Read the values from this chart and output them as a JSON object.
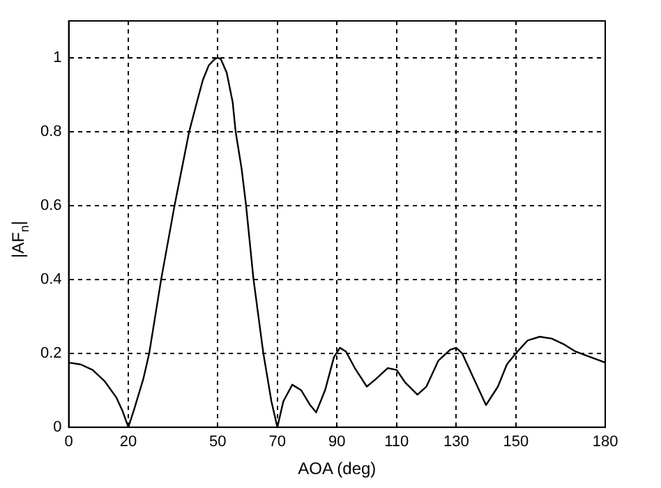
{
  "chart_data": {
    "type": "line",
    "xlabel": "AOA (deg)",
    "ylabel": "|AF$_{n}$|",
    "xlim": [
      0,
      180
    ],
    "ylim": [
      0,
      1.1
    ],
    "xticks": [
      0,
      20,
      50,
      70,
      90,
      110,
      130,
      150,
      180
    ],
    "yticks": [
      0,
      0.2,
      0.4,
      0.6,
      0.8,
      1
    ],
    "grid": true,
    "legend": false,
    "marker": "none",
    "line_style": "solid",
    "series": [
      {
        "color": "#000000",
        "x": [
          0,
          4,
          8,
          12,
          16,
          18,
          20,
          22,
          25,
          27,
          31,
          35.5,
          40.4,
          43,
          45,
          47,
          49,
          50,
          51,
          53,
          55,
          56,
          58,
          59.5,
          62,
          65.3,
          68,
          70,
          72,
          75,
          78,
          81,
          83,
          86,
          89,
          91,
          93,
          96,
          100,
          103,
          107,
          110,
          113,
          117,
          120,
          124,
          128,
          130,
          132,
          136,
          140,
          144,
          147,
          150,
          154,
          158,
          162,
          166,
          170,
          175,
          180
        ],
        "values": [
          0.175,
          0.17,
          0.155,
          0.125,
          0.08,
          0.045,
          0,
          0.05,
          0.13,
          0.2,
          0.4,
          0.6,
          0.8,
          0.88,
          0.94,
          0.98,
          0.997,
          1,
          0.997,
          0.96,
          0.88,
          0.8,
          0.7,
          0.6,
          0.4,
          0.2,
          0.07,
          0,
          0.07,
          0.115,
          0.1,
          0.06,
          0.04,
          0.1,
          0.19,
          0.215,
          0.205,
          0.16,
          0.11,
          0.13,
          0.16,
          0.155,
          0.12,
          0.088,
          0.11,
          0.18,
          0.21,
          0.215,
          0.2,
          0.13,
          0.06,
          0.11,
          0.17,
          0.2,
          0.235,
          0.245,
          0.24,
          0.225,
          0.205,
          0.19,
          0.175
        ]
      }
    ]
  }
}
